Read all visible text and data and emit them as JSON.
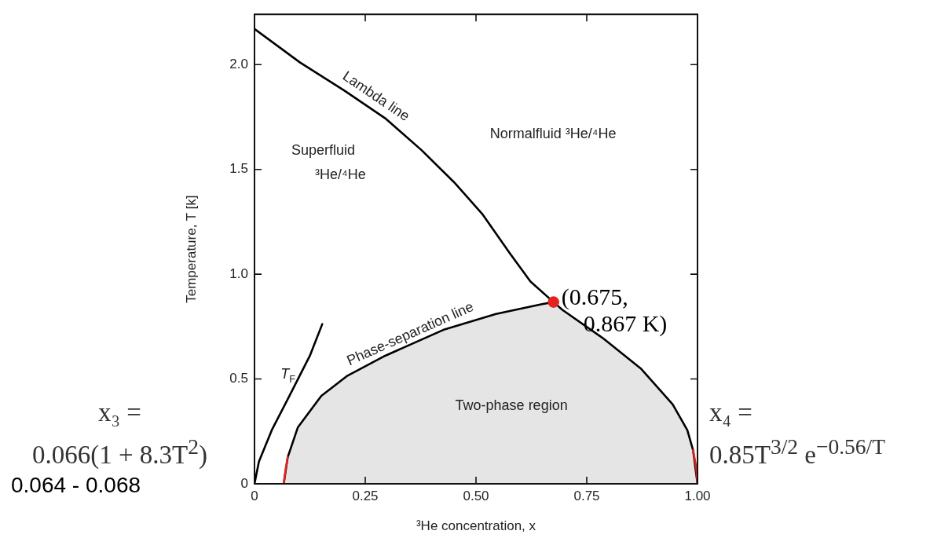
{
  "chart_data": {
    "type": "line",
    "xlabel": "³He concentration, x",
    "ylabel": "Temperature, T [k]",
    "xlim": [
      0,
      1
    ],
    "ylim": [
      0,
      2.24
    ],
    "xticks": [
      0,
      {
        "value": 0.25,
        "label": "0.25"
      },
      {
        "value": 0.5,
        "label": "0.50"
      },
      {
        "value": 0.75,
        "label": "0.75"
      },
      {
        "value": 1,
        "label": "1.00"
      }
    ],
    "yticks": [
      0,
      {
        "value": 0.5,
        "label": "0.5"
      },
      {
        "value": 1,
        "label": "1.0"
      },
      {
        "value": 1.5,
        "label": "1.5"
      },
      {
        "value": 2,
        "label": "2.0"
      }
    ],
    "grid": false,
    "legend": false,
    "marker": "none",
    "line_style": "solid",
    "series": [
      {
        "name": "Lambda line",
        "type": "line",
        "color": "#000000",
        "x": [
          0,
          0.103,
          0.203,
          0.295,
          0.377,
          0.45,
          0.514,
          0.577,
          0.623,
          0.675
        ],
        "values": [
          2.17,
          2.01,
          1.876,
          1.744,
          1.592,
          1.44,
          1.288,
          1.098,
          0.965,
          0.867
        ]
      },
      {
        "name": "Phase-separation line",
        "type": "area",
        "color": "#000000",
        "x": [
          0.066,
          0.075,
          0.098,
          0.151,
          0.21,
          0.295,
          0.426,
          0.545,
          0.649,
          0.675,
          0.695,
          0.787,
          0.872,
          0.944,
          0.977,
          0.99,
          1.0
        ],
        "values": [
          0,
          0.127,
          0.27,
          0.42,
          0.516,
          0.611,
          0.734,
          0.81,
          0.857,
          0.867,
          0.83,
          0.694,
          0.55,
          0.379,
          0.256,
          0.161,
          0
        ]
      },
      {
        "name": "T$_{F}$",
        "type": "line",
        "color": "#000000",
        "x": [
          0,
          0.01,
          0.039,
          0.079,
          0.125,
          0.153
        ],
        "values": [
          0,
          0.106,
          0.256,
          0.42,
          0.611,
          0.762
        ]
      },
      {
        "type": "line",
        "color": "#e3231f",
        "x": [
          0.066,
          0.07,
          0.075
        ],
        "values": [
          0,
          0.065,
          0.127
        ]
      },
      {
        "type": "line",
        "color": "#e3231f",
        "x": [
          0.99,
          0.997,
          1.0
        ],
        "values": [
          0.161,
          0.08,
          0
        ]
      },
      {
        "type": "scatter",
        "marker": "circle",
        "color": "#e3231f",
        "x": [
          0.675
        ],
        "values": [
          0.867
        ]
      }
    ],
    "annotations": [
      {
        "text": "(0.675,\n0.867 K)",
        "x": 0.675,
        "y": 0.867
      },
      "Normalfluid ³He/⁴He",
      "Superfluid\n³He/⁴He",
      "Two-phase region",
      "x₃ =\n0.066(1 + 8.3T$^{2}$)",
      "0.064 - 0.068",
      "x₄ =\n0.85T$^{3/2}$ e$^{−0.56/T}$"
    ]
  }
}
